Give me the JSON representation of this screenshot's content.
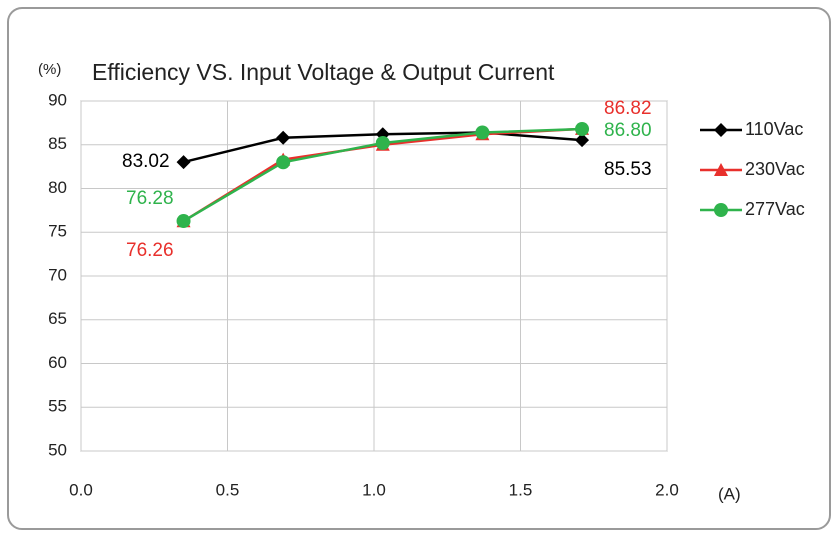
{
  "chart_data": {
    "type": "line",
    "title": "Efficiency VS. Input Voltage & Output Current",
    "ylabel": "(%)",
    "xlabel": "(A)",
    "x": [
      0.35,
      0.69,
      1.03,
      1.37,
      1.71
    ],
    "series": [
      {
        "name": "110Vac",
        "color": "#000000",
        "marker": "diamond",
        "values": [
          83.02,
          85.8,
          86.2,
          86.4,
          85.53
        ],
        "value_labels": [
          "83.02",
          null,
          null,
          null,
          "85.53"
        ]
      },
      {
        "name": "230Vac",
        "color": "#e8302c",
        "marker": "triangle",
        "values": [
          76.26,
          83.3,
          85.0,
          86.2,
          86.82
        ],
        "value_labels": [
          "76.26",
          null,
          null,
          null,
          "86.82"
        ]
      },
      {
        "name": "277Vac",
        "color": "#2fb34c",
        "marker": "circle",
        "values": [
          76.28,
          83.0,
          85.2,
          86.4,
          86.8
        ],
        "value_labels": [
          "76.28",
          null,
          null,
          null,
          "86.80"
        ]
      }
    ],
    "xlim": [
      0,
      2
    ],
    "xticks": [
      {
        "value": 0,
        "label": "0.0"
      },
      0.5,
      {
        "value": 1,
        "label": "1.0"
      },
      1.5,
      {
        "value": 2,
        "label": "2.0"
      }
    ],
    "ylim": [
      50,
      90
    ],
    "yticks": [
      50,
      55,
      60,
      65,
      70,
      75,
      80,
      85,
      90
    ],
    "grid": true,
    "legend": "right"
  }
}
